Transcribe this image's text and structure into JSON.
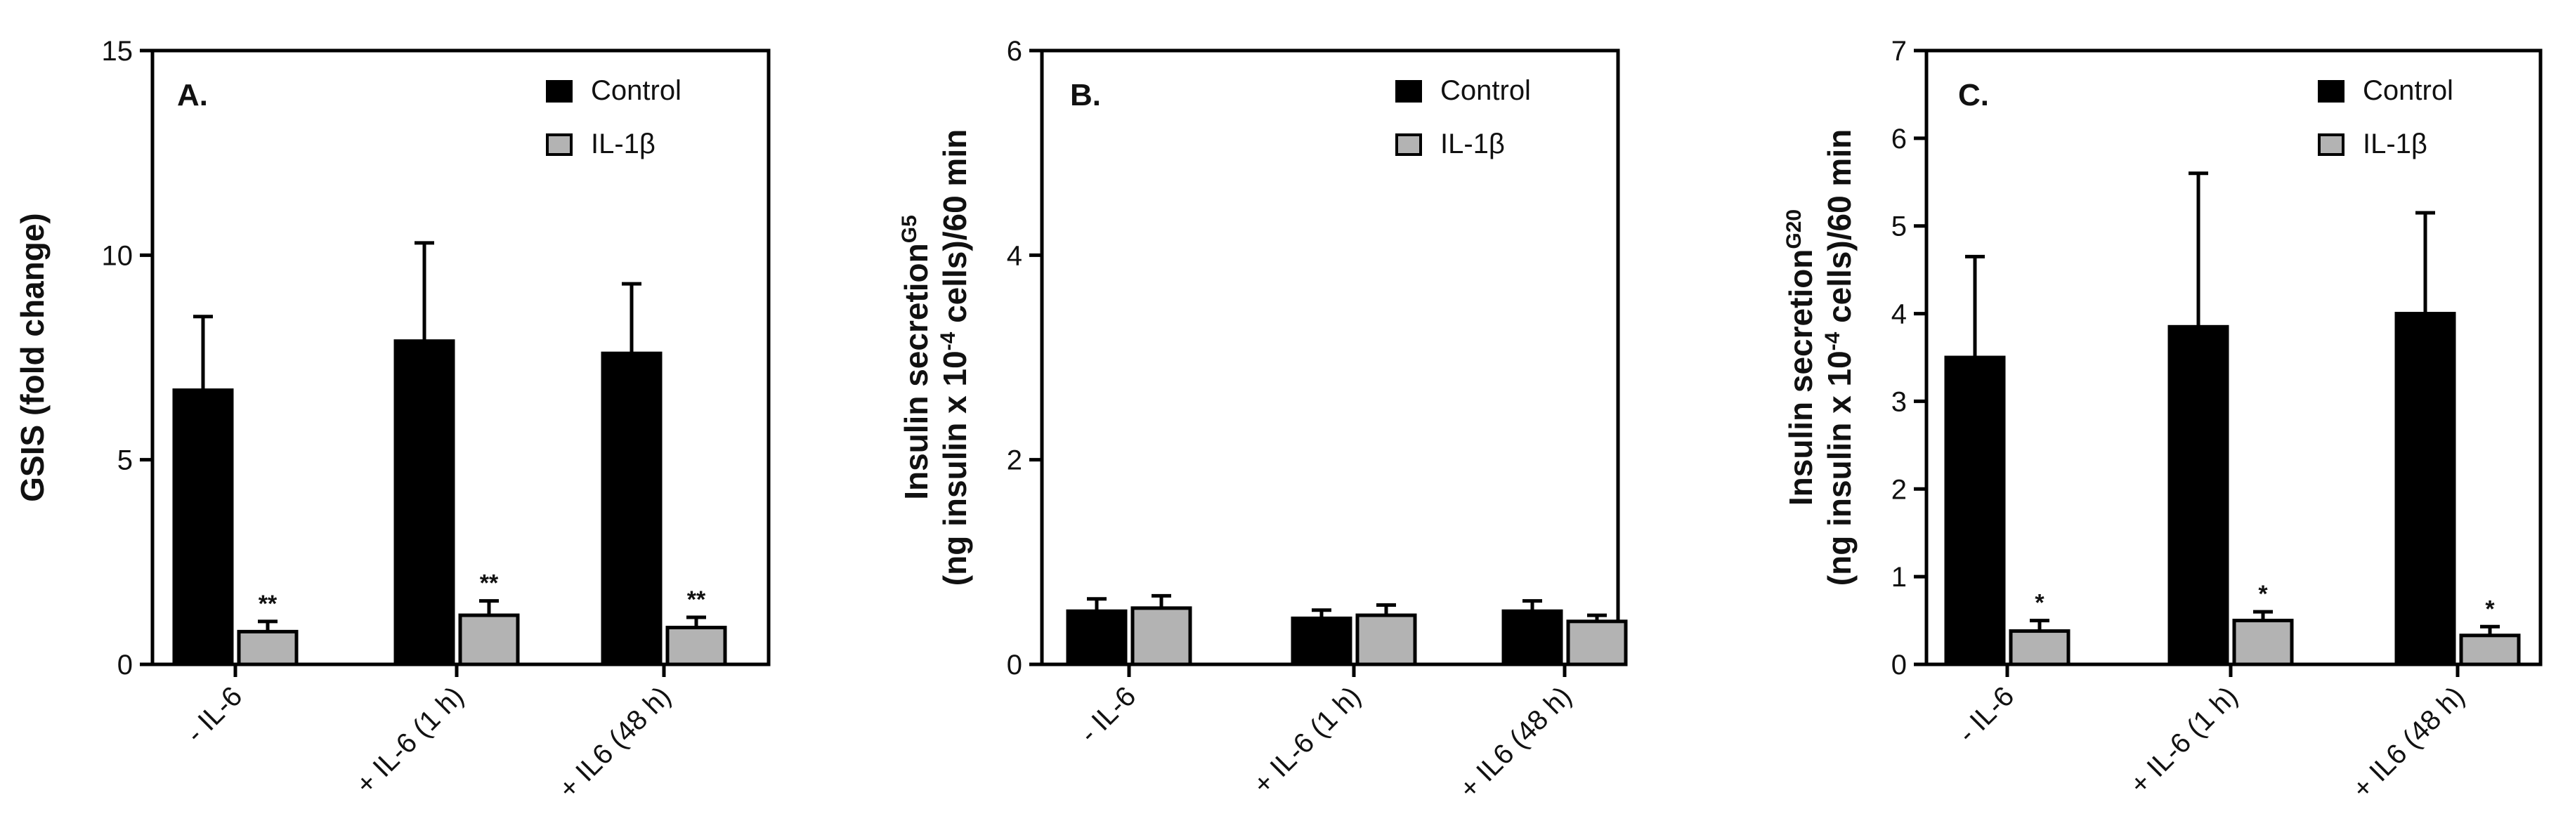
{
  "colors": {
    "control": "#000000",
    "treated": "#b3b3b3",
    "axis": "#000000"
  },
  "chart_data": [
    {
      "type": "bar",
      "panel_label": "A.",
      "ylabel": "GSIS (fold change)",
      "ylim": [
        0,
        15
      ],
      "yticks": [
        0,
        5,
        10,
        15
      ],
      "categories": [
        "- IL-6",
        "+ IL-6 (1 h)",
        "+ IL6 (48 h)"
      ],
      "legend": [
        "Control",
        "IL-1β"
      ],
      "legend_position": "top-right",
      "series": [
        {
          "name": "Control",
          "values": [
            6.7,
            7.9,
            7.6
          ],
          "errors": [
            1.8,
            2.4,
            1.7
          ],
          "markers": [
            "",
            "",
            ""
          ]
        },
        {
          "name": "IL-1β",
          "values": [
            0.8,
            1.2,
            0.9
          ],
          "errors": [
            0.25,
            0.35,
            0.25
          ],
          "markers": [
            "**",
            "**",
            "**"
          ]
        }
      ]
    },
    {
      "type": "bar",
      "panel_label": "B.",
      "ylabel_main": "Insulin secretion",
      "ylabel_sup": "G5",
      "ylabel2_pre": "(ng insulin x 10",
      "ylabel2_sup": "-4",
      "ylabel2_post": " cells)/60 min",
      "ylim": [
        0,
        6
      ],
      "yticks": [
        0,
        2,
        4,
        6
      ],
      "categories": [
        "- IL-6",
        "+ IL-6 (1 h)",
        "+ IL6 (48 h)"
      ],
      "legend": [
        "Control",
        "IL-1β"
      ],
      "legend_position": "top-right",
      "series": [
        {
          "name": "Control",
          "values": [
            0.52,
            0.45,
            0.52
          ],
          "errors": [
            0.12,
            0.08,
            0.1
          ],
          "markers": [
            "",
            "",
            ""
          ]
        },
        {
          "name": "IL-1β",
          "values": [
            0.55,
            0.48,
            0.42
          ],
          "errors": [
            0.12,
            0.1,
            0.06
          ],
          "markers": [
            "",
            "",
            ""
          ]
        }
      ]
    },
    {
      "type": "bar",
      "panel_label": "C.",
      "ylabel_main": "Insulin secretion",
      "ylabel_sup": "G20",
      "ylabel2_pre": "(ng insulin x 10",
      "ylabel2_sup": "-4",
      "ylabel2_post": " cells)/60 min",
      "ylim": [
        0,
        7
      ],
      "yticks": [
        0,
        1,
        2,
        3,
        4,
        5,
        6,
        7
      ],
      "categories": [
        "- IL-6",
        "+ IL-6 (1 h)",
        "+ IL6 (48 h)"
      ],
      "legend": [
        "Control",
        "IL-1β"
      ],
      "legend_position": "top-right",
      "series": [
        {
          "name": "Control",
          "values": [
            3.5,
            3.85,
            4.0
          ],
          "errors": [
            1.15,
            1.75,
            1.15
          ],
          "markers": [
            "",
            "",
            ""
          ]
        },
        {
          "name": "IL-1β",
          "values": [
            0.38,
            0.5,
            0.33
          ],
          "errors": [
            0.12,
            0.1,
            0.1
          ],
          "markers": [
            "*",
            "*",
            "*"
          ]
        }
      ]
    }
  ]
}
